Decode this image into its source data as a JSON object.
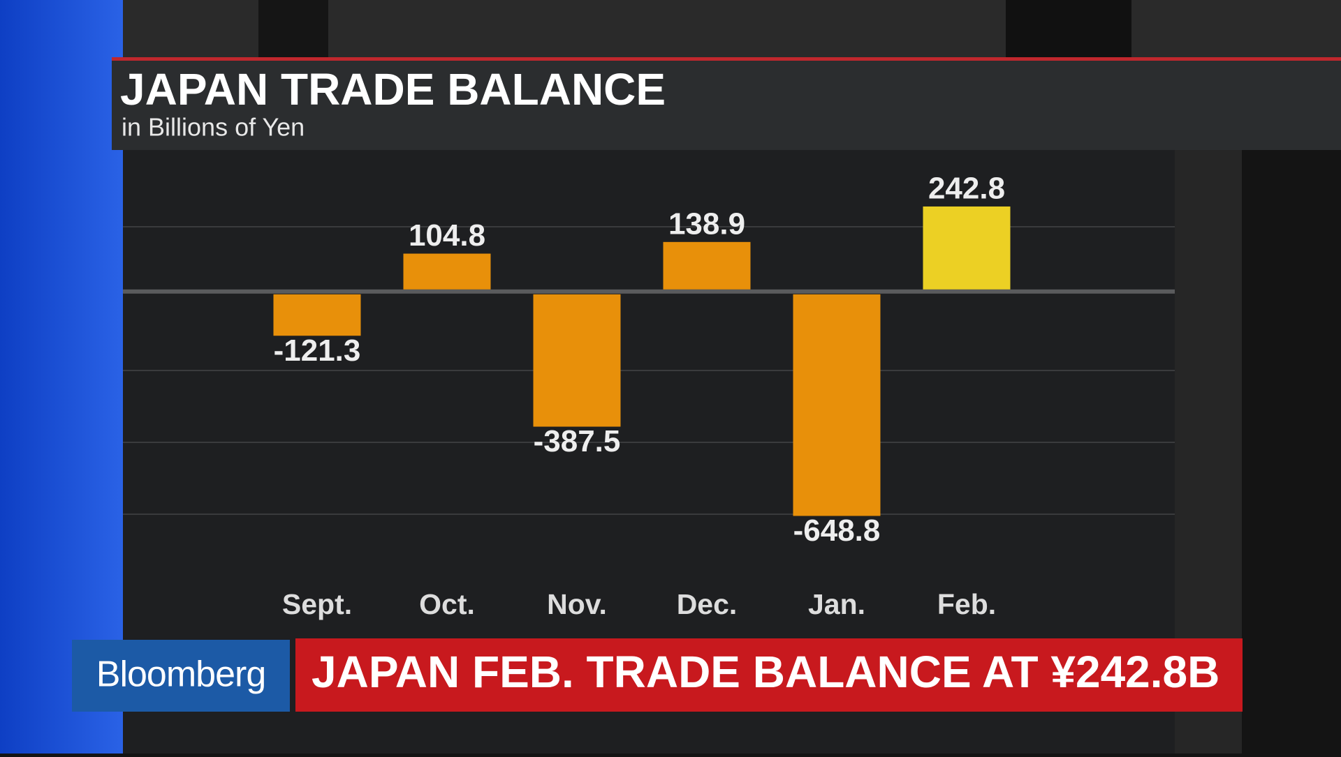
{
  "chart_data": {
    "type": "bar",
    "title": "JAPAN TRADE BALANCE",
    "subtitle": "in Billions of Yen",
    "categories": [
      "Sept.",
      "Oct.",
      "Nov.",
      "Dec.",
      "Jan.",
      "Feb."
    ],
    "values": [
      -121.3,
      104.8,
      -387.5,
      138.9,
      -648.8,
      242.8
    ],
    "colors": [
      "#e8900a",
      "#e8900a",
      "#e8900a",
      "#e8900a",
      "#e8900a",
      "#ecd024"
    ],
    "ylim": [
      -750,
      400
    ]
  },
  "branding": {
    "logo": "Bloomberg",
    "headline": "JAPAN FEB. TRADE BALANCE AT ¥242.8B"
  }
}
